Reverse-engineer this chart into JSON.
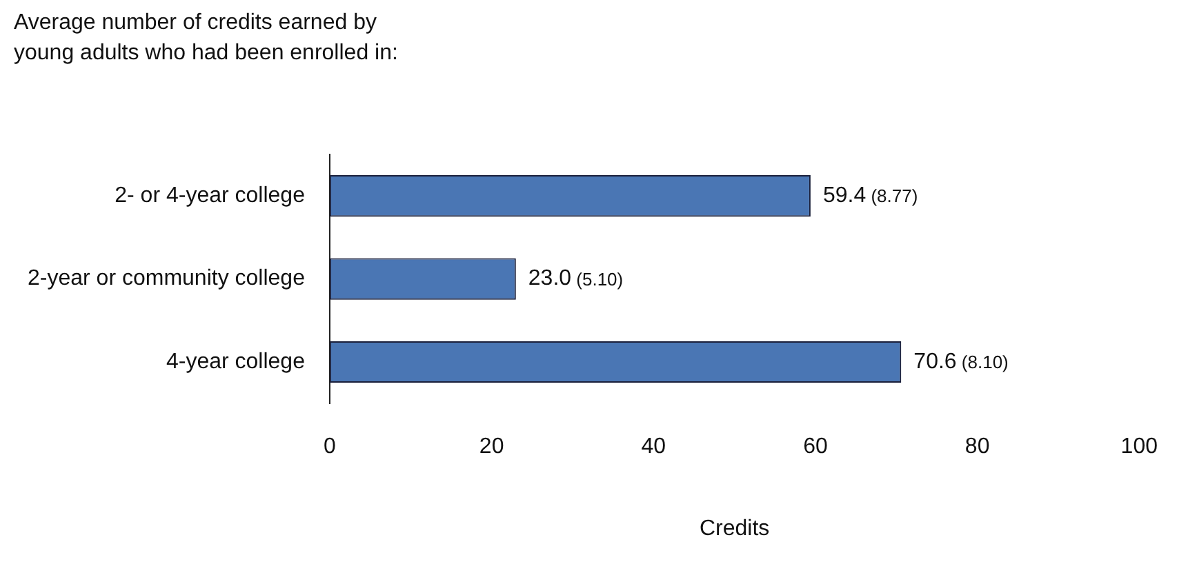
{
  "chart_data": {
    "type": "bar",
    "orientation": "horizontal",
    "title": "Average number of credits earned by young adults who had been enrolled in:",
    "xlabel": "Credits",
    "categories": [
      "2- or 4-year college",
      "2-year or community college",
      "4-year college"
    ],
    "values": [
      59.4,
      23.0,
      70.6
    ],
    "value_labels": [
      "59.4 (8.77)",
      "23.0 (5.10)",
      "70.6 (8.10)"
    ],
    "color": "#4a76b4",
    "xlim": [
      0,
      100
    ],
    "xticks": [
      0,
      20,
      40,
      60,
      80,
      100
    ],
    "grid": false,
    "legend": false
  }
}
